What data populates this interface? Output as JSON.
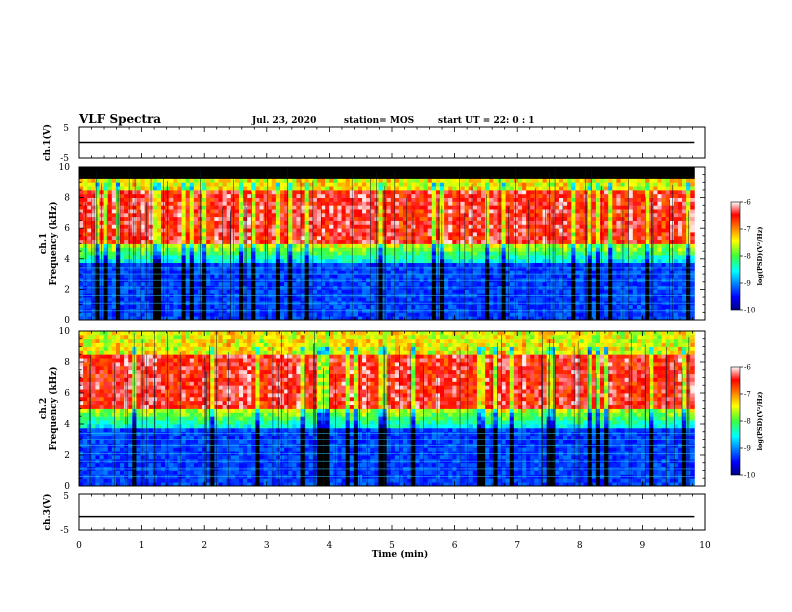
{
  "header": {
    "title": "VLF Spectra",
    "date": "Jul. 23, 2020",
    "station": "station= MOS",
    "start": "start UT =  22: 0 : 1"
  },
  "chart_data": {
    "type": "heatmap",
    "xlabel": "Time (min)",
    "xlim": [
      0,
      10
    ],
    "xticks": [
      "0",
      "1",
      "2",
      "3",
      "4",
      "5",
      "6",
      "7",
      "8",
      "9",
      "10"
    ],
    "data_end_min": 9.83,
    "panels": [
      {
        "kind": "line",
        "ylabel": "ch.1(V)",
        "ylim": [
          -5,
          5
        ],
        "yticks": [
          "5",
          "-5"
        ],
        "level": 0
      },
      {
        "kind": "spectrogram",
        "ylabel_top": "ch.1",
        "ylabel": "Frequency (kHz)",
        "ylim": [
          0,
          10
        ],
        "yticks": [
          "0",
          "2",
          "4",
          "6",
          "8",
          "10"
        ],
        "band_kHz": [
          5.0,
          8.5
        ],
        "cutoff_kHz": 9.2
      },
      {
        "kind": "spectrogram",
        "ylabel_top": "ch.2",
        "ylabel": "Frequency (kHz)",
        "ylim": [
          0,
          10
        ],
        "yticks": [
          "0",
          "2",
          "4",
          "6",
          "8",
          "10"
        ],
        "band_kHz": [
          5.0,
          8.5
        ],
        "cutoff_kHz": 10
      },
      {
        "kind": "line",
        "ylabel": "ch.3(V)",
        "ylim": [
          -5,
          5
        ],
        "yticks": [
          "5",
          "-5"
        ],
        "level": -1.3
      }
    ],
    "colorbar": {
      "label": "log(PSD)(V²/Hz)",
      "range": [
        -10,
        -6
      ],
      "ticks": [
        "-6",
        "-7",
        "-8",
        "-9",
        "-10"
      ]
    }
  }
}
